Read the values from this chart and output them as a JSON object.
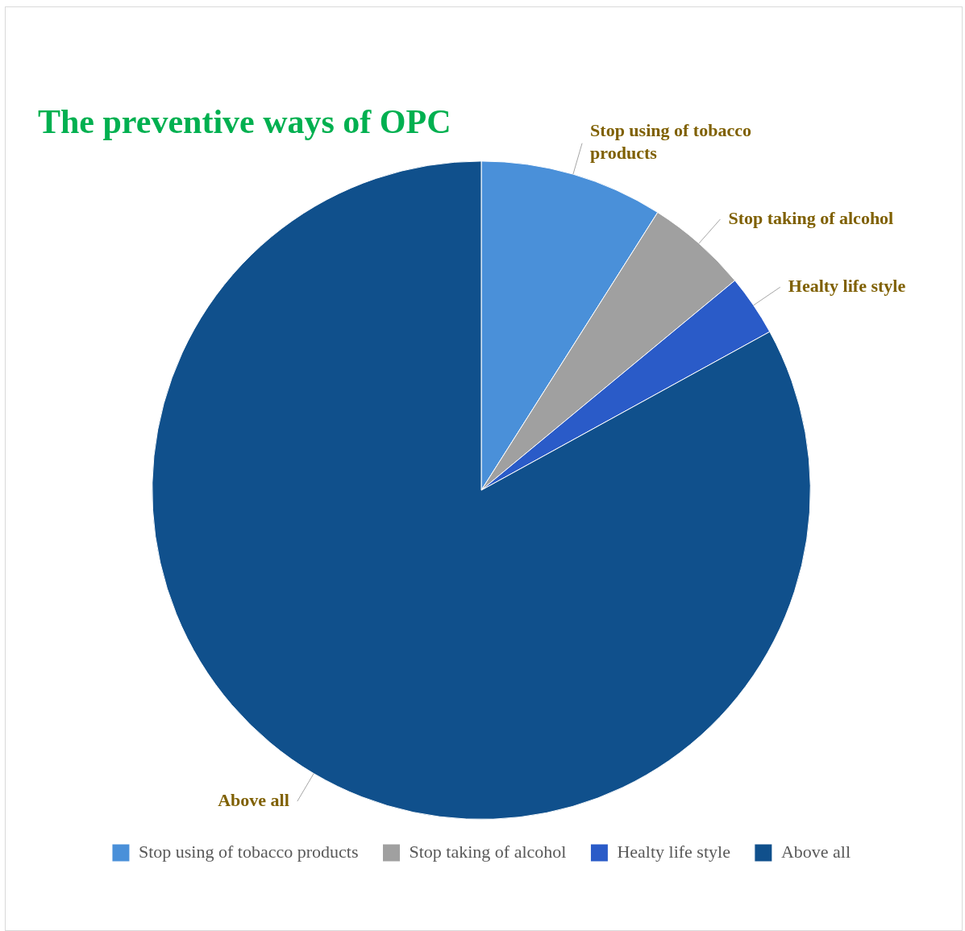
{
  "chart_data": {
    "type": "pie",
    "title": "The preventive ways of OPC",
    "categories": [
      "Stop using of tobacco products",
      "Stop taking of alcohol",
      "Healty life style",
      "Above all"
    ],
    "values": [
      9,
      5,
      3,
      83
    ],
    "colors": [
      "#4a90d9",
      "#a0a0a0",
      "#2a5bc8",
      "#10508c"
    ],
    "legend": "bottom"
  }
}
